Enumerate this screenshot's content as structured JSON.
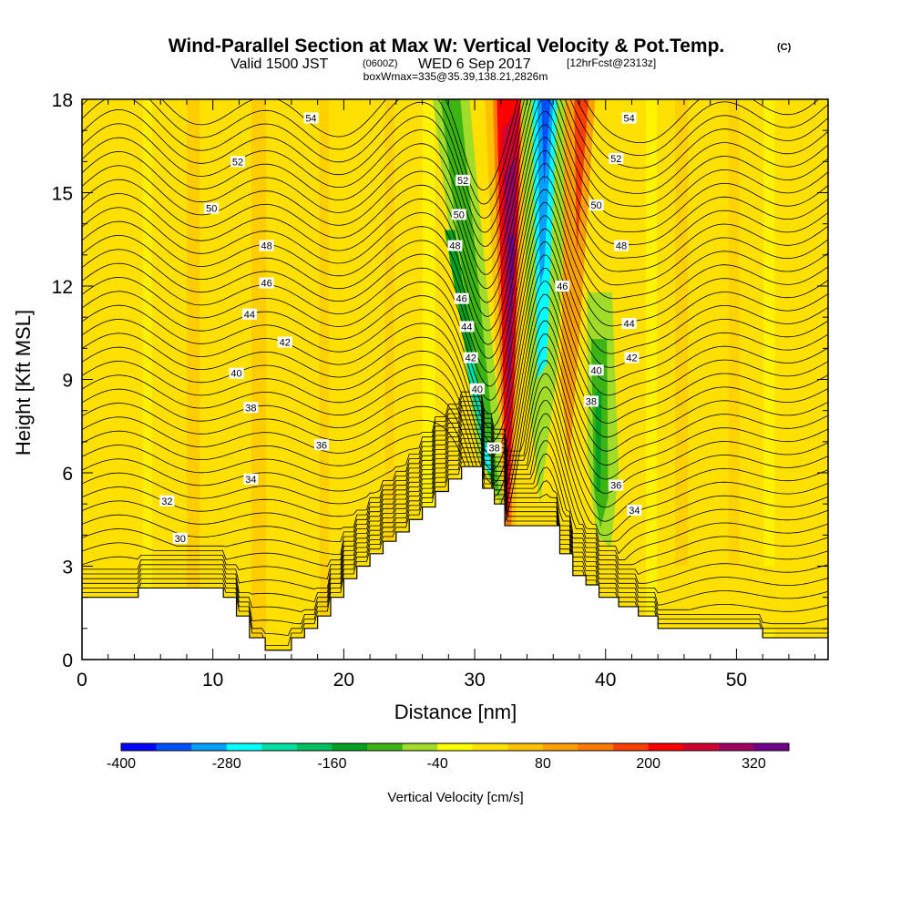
{
  "chart_data": {
    "type": "heatmap",
    "title": "Wind-Parallel Section at Max W: Vertical Velocity & Pot.Temp.",
    "title_mark": "(C)",
    "subtitle_valid": "Valid 1500 JST",
    "subtitle_utc": "(0600Z)",
    "subtitle_date": "WED 6 Sep 2017",
    "subtitle_fcst": "[12hrFcst@2313z]",
    "box_info": "boxWmax=335@35.39,138.21,2826m",
    "xlabel": "Distance [nm]",
    "ylabel": "Height [Kft MSL]",
    "xlim": [
      0,
      57
    ],
    "ylim": [
      0,
      18
    ],
    "xticks": [
      0,
      10,
      20,
      30,
      40,
      50
    ],
    "yticks": [
      0,
      3,
      6,
      9,
      12,
      15,
      18
    ],
    "colorbar": {
      "label": "Vertical Velocity [cm/s]",
      "levels": [
        -400,
        -360,
        -320,
        -280,
        -240,
        -200,
        -160,
        -120,
        -80,
        -40,
        0,
        40,
        80,
        120,
        160,
        200,
        240,
        280,
        320,
        360
      ],
      "tick_labels": [
        "-400",
        "-280",
        "-160",
        "-40",
        "80",
        "200",
        "320"
      ],
      "colors": [
        "#0000ff",
        "#0050ff",
        "#00a0ff",
        "#00ffff",
        "#00e0a0",
        "#00c060",
        "#00a020",
        "#3cb414",
        "#a0dc28",
        "#ffff00",
        "#ffe000",
        "#ffc000",
        "#ffa000",
        "#ff7800",
        "#ff4000",
        "#ff0000",
        "#d00030",
        "#a00060",
        "#70008c"
      ]
    },
    "terrain": [
      [
        0,
        2.0
      ],
      [
        4.3,
        2.0
      ],
      [
        4.3,
        2.3
      ],
      [
        10.8,
        2.3
      ],
      [
        10.8,
        2.0
      ],
      [
        11.8,
        2.0
      ],
      [
        11.8,
        1.4
      ],
      [
        12.8,
        1.4
      ],
      [
        12.8,
        0.7
      ],
      [
        14,
        0.7
      ],
      [
        14,
        0.3
      ],
      [
        16,
        0.3
      ],
      [
        16,
        0.7
      ],
      [
        17,
        0.7
      ],
      [
        17,
        1.0
      ],
      [
        18,
        1.0
      ],
      [
        18,
        1.4
      ],
      [
        19,
        1.4
      ],
      [
        19,
        2.0
      ],
      [
        20,
        2.0
      ],
      [
        20,
        2.6
      ],
      [
        21,
        2.6
      ],
      [
        21,
        3.0
      ],
      [
        22,
        3.0
      ],
      [
        22,
        3.4
      ],
      [
        23,
        3.4
      ],
      [
        23,
        3.8
      ],
      [
        24,
        3.8
      ],
      [
        24,
        4.1
      ],
      [
        25,
        4.1
      ],
      [
        25,
        4.5
      ],
      [
        26,
        4.5
      ],
      [
        26,
        4.9
      ],
      [
        27,
        4.9
      ],
      [
        27,
        5.4
      ],
      [
        28,
        5.4
      ],
      [
        28,
        5.8
      ],
      [
        29,
        5.8
      ],
      [
        29,
        6.2
      ],
      [
        30.6,
        6.2
      ],
      [
        30.6,
        5.5
      ],
      [
        31.5,
        5.5
      ],
      [
        31.5,
        5.0
      ],
      [
        32.3,
        5.0
      ],
      [
        32.3,
        4.3
      ],
      [
        36.5,
        4.3
      ],
      [
        36.5,
        3.4
      ],
      [
        37.5,
        3.4
      ],
      [
        37.5,
        2.7
      ],
      [
        38.5,
        2.7
      ],
      [
        38.5,
        2.4
      ],
      [
        39.5,
        2.4
      ],
      [
        39.5,
        2.0
      ],
      [
        41,
        2.0
      ],
      [
        41,
        1.7
      ],
      [
        42.5,
        1.7
      ],
      [
        42.5,
        1.4
      ],
      [
        44,
        1.4
      ],
      [
        44,
        1.0
      ],
      [
        52,
        1.0
      ],
      [
        52,
        0.7
      ],
      [
        57,
        0.7
      ]
    ],
    "contours": {
      "quantity": "potential temperature",
      "labels": [
        {
          "text": "54",
          "x": 17.5,
          "y": 17.4
        },
        {
          "text": "52",
          "x": 11.9,
          "y": 16.0
        },
        {
          "text": "50",
          "x": 9.9,
          "y": 14.5
        },
        {
          "text": "48",
          "x": 14.1,
          "y": 13.3
        },
        {
          "text": "46",
          "x": 14.1,
          "y": 12.1
        },
        {
          "text": "44",
          "x": 12.8,
          "y": 11.1
        },
        {
          "text": "42",
          "x": 15.5,
          "y": 10.2
        },
        {
          "text": "40",
          "x": 11.8,
          "y": 9.2
        },
        {
          "text": "38",
          "x": 12.9,
          "y": 8.1
        },
        {
          "text": "36",
          "x": 18.3,
          "y": 6.9
        },
        {
          "text": "34",
          "x": 12.9,
          "y": 5.8
        },
        {
          "text": "32",
          "x": 6.5,
          "y": 5.1
        },
        {
          "text": "30",
          "x": 7.5,
          "y": 3.9
        },
        {
          "text": "52",
          "x": 29.1,
          "y": 15.4
        },
        {
          "text": "50",
          "x": 28.8,
          "y": 14.3
        },
        {
          "text": "48",
          "x": 28.5,
          "y": 13.3
        },
        {
          "text": "46",
          "x": 29.0,
          "y": 11.6
        },
        {
          "text": "44",
          "x": 29.4,
          "y": 10.7
        },
        {
          "text": "42",
          "x": 29.7,
          "y": 9.7
        },
        {
          "text": "40",
          "x": 30.2,
          "y": 8.7
        },
        {
          "text": "38",
          "x": 31.5,
          "y": 6.8
        },
        {
          "text": "54",
          "x": 41.8,
          "y": 17.4
        },
        {
          "text": "52",
          "x": 40.8,
          "y": 16.1
        },
        {
          "text": "50",
          "x": 39.3,
          "y": 14.6
        },
        {
          "text": "48",
          "x": 41.2,
          "y": 13.3
        },
        {
          "text": "46",
          "x": 36.7,
          "y": 12.0
        },
        {
          "text": "44",
          "x": 41.8,
          "y": 10.8
        },
        {
          "text": "42",
          "x": 42.0,
          "y": 9.7
        },
        {
          "text": "40",
          "x": 39.3,
          "y": 9.3
        },
        {
          "text": "38",
          "x": 38.9,
          "y": 8.3
        },
        {
          "text": "36",
          "x": 40.8,
          "y": 5.6
        },
        {
          "text": "34",
          "x": 42.2,
          "y": 4.8
        }
      ]
    }
  }
}
